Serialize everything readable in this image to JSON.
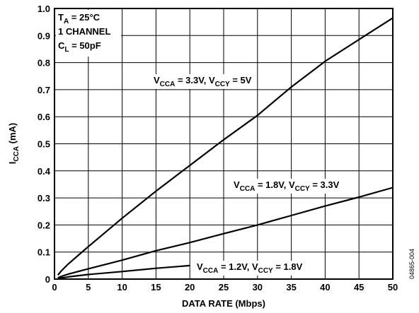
{
  "chart_data": {
    "type": "line",
    "xlabel": "DATA RATE (Mbps)",
    "ylabel_main": "I",
    "ylabel_sub": "CCA",
    "ylabel_tail": " (mA)",
    "xlim": [
      0,
      50
    ],
    "ylim": [
      0,
      1.0
    ],
    "x_ticks": [
      "0",
      "5",
      "10",
      "15",
      "20",
      "25",
      "30",
      "35",
      "40",
      "45",
      "50"
    ],
    "y_ticks": [
      "0",
      "0.1",
      "0.2",
      "0.3",
      "0.4",
      "0.5",
      "0.6",
      "0.7",
      "0.8",
      "0.9",
      "1.0"
    ],
    "grid": true,
    "conditions": [
      {
        "main": "T",
        "sub": "A",
        "tail": " = 25°C"
      },
      {
        "main": "1 CHANNEL",
        "sub": "",
        "tail": ""
      },
      {
        "main": "C",
        "sub": "L",
        "tail": " = 50pF"
      }
    ],
    "series": [
      {
        "label_parts": [
          [
            "V",
            "CCA",
            " = 3.3V, "
          ],
          [
            "V",
            "CCY",
            " = 5V"
          ]
        ],
        "x": [
          0.5,
          1,
          2,
          5,
          10,
          15,
          20,
          25,
          30,
          35,
          40,
          45,
          50
        ],
        "y": [
          0.015,
          0.03,
          0.055,
          0.12,
          0.225,
          0.325,
          0.42,
          0.515,
          0.605,
          0.71,
          0.805,
          0.885,
          0.965
        ]
      },
      {
        "label_parts": [
          [
            "V",
            "CCA",
            " = 1.8V, "
          ],
          [
            "V",
            "CCY",
            " = 3.3V"
          ]
        ],
        "x": [
          0.5,
          1,
          2,
          5,
          10,
          15,
          20,
          25,
          30,
          35,
          40,
          45,
          50
        ],
        "y": [
          0.005,
          0.01,
          0.018,
          0.038,
          0.07,
          0.105,
          0.135,
          0.168,
          0.2,
          0.235,
          0.27,
          0.303,
          0.338
        ]
      },
      {
        "label_parts": [
          [
            "V",
            "CCA",
            " = 1.2V, "
          ],
          [
            "V",
            "CCY",
            " = 1.8V"
          ]
        ],
        "x": [
          0.5,
          1,
          2,
          5,
          10,
          15,
          20
        ],
        "y": [
          0.002,
          0.004,
          0.008,
          0.017,
          0.028,
          0.04,
          0.05
        ]
      }
    ]
  },
  "figure_id": "04865-004"
}
